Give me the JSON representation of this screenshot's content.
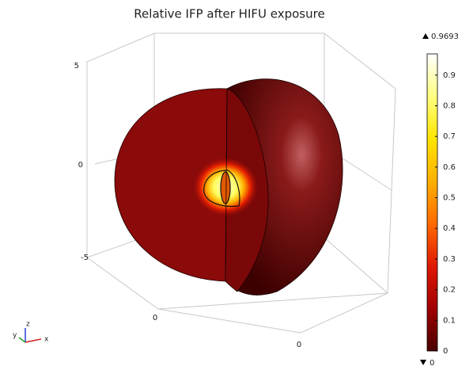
{
  "chart_data": {
    "type": "surface3d",
    "title": "Relative IFP after HIFU exposure",
    "zticks": [
      5,
      0,
      -5
    ],
    "xticks": [
      0
    ],
    "yticks": [
      0
    ],
    "triad": [
      "x",
      "y",
      "z"
    ],
    "colorbar": {
      "lim": [
        0,
        0.9693
      ],
      "max": 0.9693,
      "min": 0,
      "ticks": [
        0,
        0.1,
        0.2,
        0.3,
        0.4,
        0.5,
        0.6,
        0.7,
        0.8,
        0.9
      ],
      "colors": [
        "#4a0000",
        "#a00000",
        "#e01800",
        "#ff6a00",
        "#ffb000",
        "#ffe600",
        "#ffff80",
        "#ffffff"
      ]
    }
  }
}
